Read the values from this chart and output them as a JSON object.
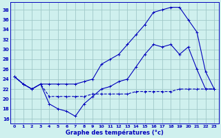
{
  "title": "Graphe des températures (°c)",
  "bg_color": "#cff0ee",
  "grid_color": "#a0c8c8",
  "line_color": "#0000bb",
  "x_ticks": [
    0,
    1,
    2,
    3,
    4,
    5,
    6,
    7,
    8,
    9,
    10,
    11,
    12,
    13,
    14,
    15,
    16,
    17,
    18,
    19,
    20,
    21,
    22,
    23
  ],
  "y_ticks": [
    16,
    18,
    20,
    22,
    24,
    26,
    28,
    30,
    32,
    34,
    36,
    38
  ],
  "ylim": [
    15.0,
    39.5
  ],
  "xlim": [
    -0.5,
    23.5
  ],
  "line1_x": [
    0,
    1,
    2,
    3,
    4,
    5,
    6,
    7,
    8,
    9,
    10,
    11,
    12,
    13,
    14,
    15,
    16,
    17,
    18,
    19,
    20,
    21,
    22,
    23
  ],
  "line1_y": [
    24.5,
    23.0,
    22.0,
    23.0,
    23.0,
    23.0,
    23.0,
    23.0,
    23.5,
    24.0,
    27.0,
    28.0,
    29.0,
    31.0,
    33.0,
    35.0,
    37.5,
    38.0,
    38.5,
    38.5,
    36.0,
    33.5,
    25.5,
    22.0
  ],
  "line2_x": [
    0,
    1,
    2,
    3,
    4,
    5,
    6,
    7,
    8,
    9,
    10,
    11,
    12,
    13,
    14,
    15,
    16,
    17,
    18,
    19,
    20,
    21,
    22,
    23
  ],
  "line2_y": [
    24.5,
    23.0,
    22.0,
    23.0,
    19.0,
    18.0,
    17.5,
    16.5,
    19.0,
    20.5,
    22.0,
    22.5,
    23.5,
    24.0,
    26.5,
    29.0,
    31.0,
    30.5,
    31.0,
    29.0,
    30.5,
    26.0,
    22.0,
    22.0
  ],
  "line3_x": [
    0,
    1,
    2,
    3,
    4,
    5,
    6,
    7,
    8,
    9,
    10,
    11,
    12,
    13,
    14,
    15,
    16,
    17,
    18,
    19,
    20,
    21,
    22,
    23
  ],
  "line3_y": [
    24.5,
    23.0,
    22.0,
    23.0,
    20.5,
    20.5,
    20.5,
    20.5,
    20.5,
    21.0,
    21.0,
    21.0,
    21.0,
    21.0,
    21.5,
    21.5,
    21.5,
    21.5,
    21.5,
    22.0,
    22.0,
    22.0,
    22.0,
    22.0
  ],
  "figwidth": 3.2,
  "figheight": 2.0,
  "dpi": 100
}
